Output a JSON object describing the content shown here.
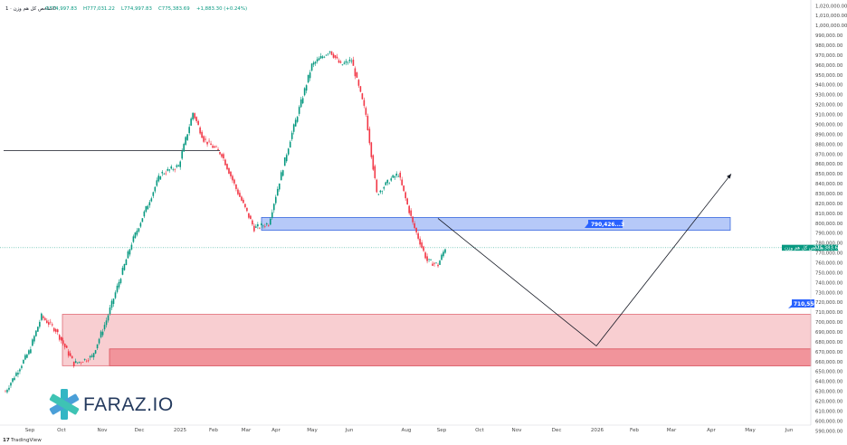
{
  "legend": {
    "title": "شاخص کل هم وزن · 1D",
    "open": "O774,997.83",
    "high": "H777,031.22",
    "low": "L774,997.83",
    "close": "C775,383.69",
    "change": "+1,883.30 (+0.24%)"
  },
  "price_tag": {
    "series_label": "شاخص کل هم وزن",
    "value": "775,383.69",
    "color": "#089981"
  },
  "zones": [
    {
      "name": "resistance-zone",
      "label": "790,426...3",
      "color": "#2962ff"
    },
    {
      "name": "support-zone",
      "label": "710,550",
      "color": "#f23645"
    }
  ],
  "branding": {
    "logo_text": "FARAZ.IO",
    "attribution": "TradingView"
  },
  "chart_data": {
    "type": "candlestick",
    "title": "شاخص کل هم وزن",
    "interval": "1D",
    "y_ticks": [
      "1,020,000.00",
      "1,010,000.00",
      "1,000,000.00",
      "990,000.00",
      "980,000.00",
      "970,000.00",
      "960,000.00",
      "950,000.00",
      "940,000.00",
      "930,000.00",
      "920,000.00",
      "910,000.00",
      "900,000.00",
      "890,000.00",
      "880,000.00",
      "870,000.00",
      "860,000.00",
      "850,000.00",
      "840,000.00",
      "830,000.00",
      "820,000.00",
      "810,000.00",
      "800,000.00",
      "790,000.00",
      "780,000.00",
      "770,000.00",
      "760,000.00",
      "750,000.00",
      "740,000.00",
      "730,000.00",
      "720,000.00",
      "710,000.00",
      "700,000.00",
      "690,000.00",
      "680,000.00",
      "670,000.00",
      "660,000.00",
      "650,000.00",
      "640,000.00",
      "630,000.00",
      "620,000.00",
      "610,000.00",
      "600,000.00",
      "590,000.00"
    ],
    "x_ticks": [
      "Sep",
      "Oct",
      "Nov",
      "Dec",
      "2025",
      "Feb",
      "Mar",
      "Apr",
      "May",
      "Jun",
      "Aug",
      "Sep",
      "Oct",
      "Nov",
      "Dec",
      "2026",
      "Feb",
      "Mar",
      "Apr",
      "May",
      "Jun"
    ],
    "ylim": [
      589000,
      1023000
    ],
    "series_anchors": [
      {
        "t": 0,
        "v": 630000
      },
      {
        "t": 13,
        "v": 670000
      },
      {
        "t": 20,
        "v": 706000
      },
      {
        "t": 28,
        "v": 692000
      },
      {
        "t": 38,
        "v": 658000
      },
      {
        "t": 48,
        "v": 665000
      },
      {
        "t": 56,
        "v": 702000
      },
      {
        "t": 70,
        "v": 780000
      },
      {
        "t": 86,
        "v": 850000
      },
      {
        "t": 96,
        "v": 858000
      },
      {
        "t": 104,
        "v": 912000
      },
      {
        "t": 110,
        "v": 885000
      },
      {
        "t": 120,
        "v": 870000
      },
      {
        "t": 128,
        "v": 835000
      },
      {
        "t": 138,
        "v": 795000
      },
      {
        "t": 146,
        "v": 800000
      },
      {
        "t": 158,
        "v": 885000
      },
      {
        "t": 170,
        "v": 960000
      },
      {
        "t": 180,
        "v": 975000
      },
      {
        "t": 186,
        "v": 960000
      },
      {
        "t": 192,
        "v": 965000
      },
      {
        "t": 200,
        "v": 910000
      },
      {
        "t": 206,
        "v": 830000
      },
      {
        "t": 214,
        "v": 845000
      },
      {
        "t": 218,
        "v": 850000
      },
      {
        "t": 226,
        "v": 800000
      },
      {
        "t": 234,
        "v": 762000
      },
      {
        "t": 240,
        "v": 758000
      },
      {
        "t": 244,
        "v": 775383.69
      }
    ],
    "horizontal_line": {
      "value": 873500,
      "x_end": "Feb"
    },
    "resistance_zone": {
      "low": 793000,
      "high": 806000,
      "label": "790,426...3"
    },
    "support_zone": {
      "low": 656000,
      "high": 708000,
      "inner_low": 656000,
      "inner_high": 673000,
      "label": "710,550"
    },
    "projection": [
      {
        "x": "Sep",
        "y": 805000
      },
      {
        "x": "2026",
        "y": 676000
      },
      {
        "x": "May",
        "y": 850000
      }
    ],
    "last_price": 775383.69
  }
}
